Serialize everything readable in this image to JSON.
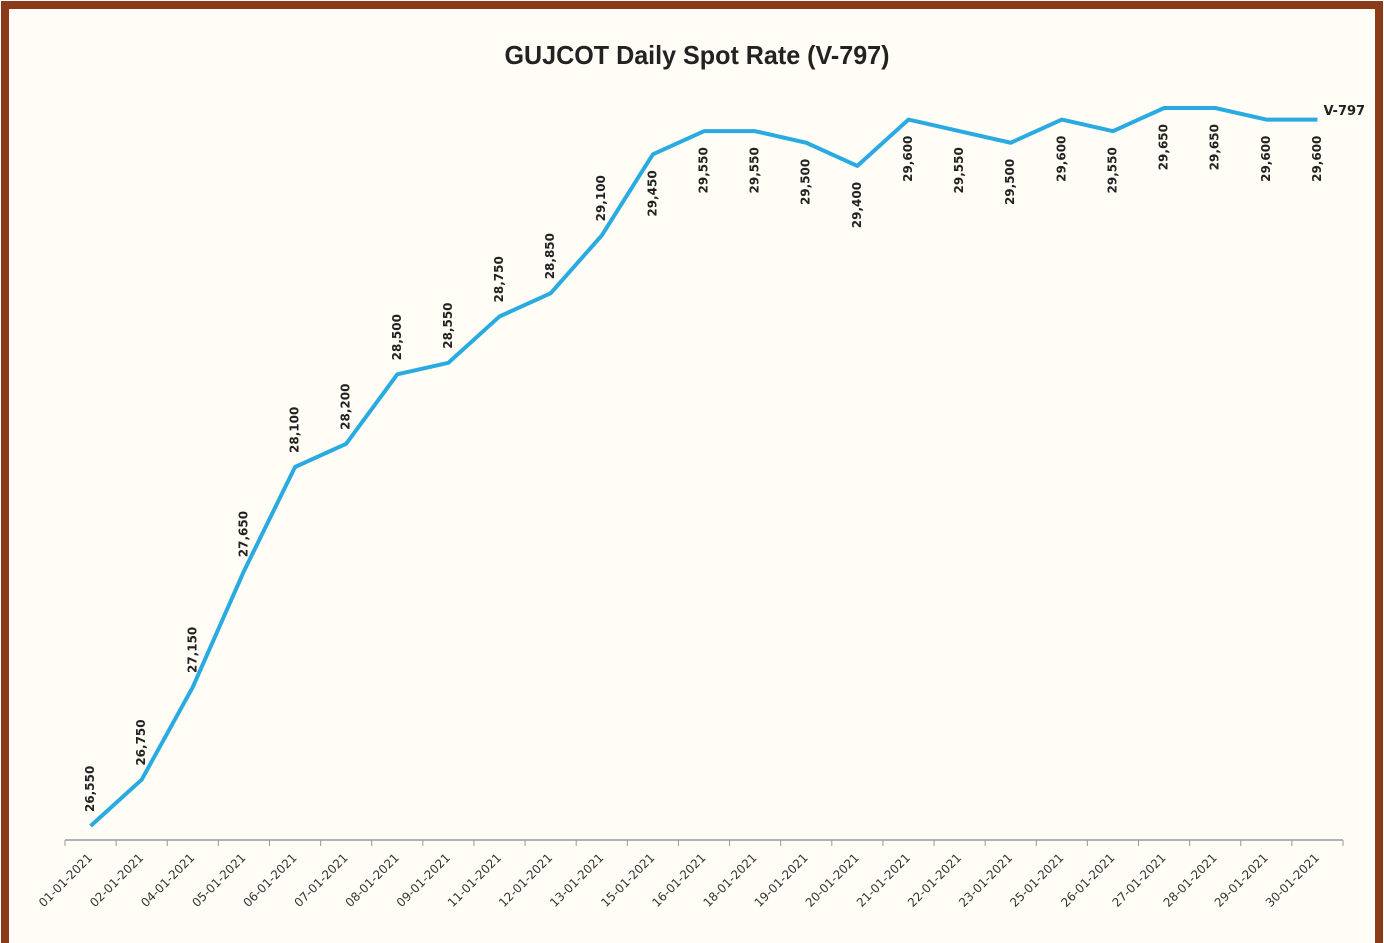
{
  "chart_data": {
    "type": "line",
    "title": "GUJCOT Daily Spot Rate (V-797)",
    "categories": [
      "01-01-2021",
      "02-01-2021",
      "04-01-2021",
      "05-01-2021",
      "06-01-2021",
      "07-01-2021",
      "08-01-2021",
      "09-01-2021",
      "11-01-2021",
      "12-01-2021",
      "13-01-2021",
      "15-01-2021",
      "16-01-2021",
      "18-01-2021",
      "19-01-2021",
      "20-01-2021",
      "21-01-2021",
      "22-01-2021",
      "23-01-2021",
      "25-01-2021",
      "26-01-2021",
      "27-01-2021",
      "28-01-2021",
      "29-01-2021",
      "30-01-2021"
    ],
    "series": [
      {
        "name": "V-797",
        "color": "#29abe2",
        "values": [
          26550,
          26750,
          27150,
          27650,
          28100,
          28200,
          28500,
          28550,
          28750,
          28850,
          29100,
          29450,
          29550,
          29550,
          29500,
          29400,
          29600,
          29550,
          29500,
          29600,
          29550,
          29650,
          29650,
          29600,
          29600
        ],
        "value_labels": [
          "26,550",
          "26,750",
          "27,150",
          "27,650",
          "28,100",
          "28,200",
          "28,500",
          "28,550",
          "28,750",
          "28,850",
          "29,100",
          "29,450",
          "29,550",
          "29,550",
          "29,500",
          "29,400",
          "29,600",
          "29,550",
          "29,500",
          "29,600",
          "29,550",
          "29,650",
          "29,650",
          "29,600",
          "29,600"
        ]
      }
    ]
  }
}
